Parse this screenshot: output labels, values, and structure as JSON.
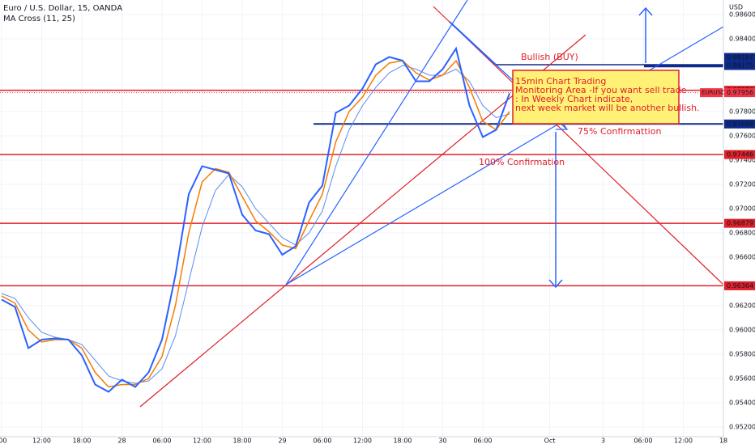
{
  "header": {
    "title": "Euro / U.S. Dollar, 15, OANDA",
    "indicator": "MA Cross (11, 25)",
    "currency": "USD"
  },
  "chart_data": {
    "type": "line",
    "categories": [
      ":00",
      null,
      null,
      "12:00",
      null,
      null,
      "18:00",
      null,
      null,
      "28",
      null,
      null,
      "06:00",
      null,
      null,
      "12:00",
      null,
      null,
      "18:00",
      null,
      null,
      "29",
      null,
      null,
      "06:00",
      null,
      null,
      "12:00",
      null,
      null,
      "18:00",
      null,
      null,
      "30",
      null,
      null,
      "06:00",
      null,
      null,
      null,
      null,
      "Oct",
      null,
      null,
      null,
      "3",
      null,
      null,
      "06:00",
      null,
      null,
      "12:00",
      null,
      null,
      "18"
    ],
    "series": [
      {
        "color": "#2962ff",
        "width": 2,
        "values": [
          0.9625,
          0.9619,
          0.9585,
          0.9592,
          0.9593,
          0.9592,
          0.9579,
          0.9555,
          0.9549,
          0.9559,
          0.9553,
          0.9565,
          0.9592,
          0.9645,
          0.9712,
          0.9735,
          0.9732,
          0.9729,
          0.9695,
          0.9682,
          0.9679,
          0.9662,
          0.9669,
          0.9705,
          0.9719,
          0.9779,
          0.9785,
          0.9799,
          0.9819,
          0.9825,
          0.9822,
          0.9805,
          0.9805,
          0.9815,
          0.9832,
          0.9785,
          0.9759,
          0.9765,
          0.9795,
          null,
          null,
          null,
          null,
          null,
          null,
          null,
          null,
          null,
          null,
          null,
          null,
          null,
          null,
          null,
          null
        ]
      },
      {
        "color": "#f57c00",
        "width": 1.5,
        "values": [
          0.9628,
          0.9622,
          0.96,
          0.959,
          0.9592,
          0.9592,
          0.9585,
          0.9565,
          0.9553,
          0.9555,
          0.9555,
          0.956,
          0.9578,
          0.962,
          0.968,
          0.9722,
          0.9733,
          0.973,
          0.971,
          0.969,
          0.9681,
          0.967,
          0.9667,
          0.969,
          0.9712,
          0.9755,
          0.978,
          0.9792,
          0.981,
          0.982,
          0.9822,
          0.9812,
          0.9806,
          0.981,
          0.9822,
          0.98,
          0.9772,
          0.9765,
          0.978,
          null,
          null,
          null,
          null,
          null,
          null,
          null,
          null,
          null,
          null,
          null,
          null,
          null,
          null,
          null,
          null
        ]
      },
      {
        "color": "#5b8def",
        "width": 1,
        "values": [
          0.963,
          0.9626,
          0.961,
          0.9598,
          0.9594,
          0.9592,
          0.9588,
          0.9575,
          0.9562,
          0.9558,
          0.9556,
          0.9558,
          0.9568,
          0.9595,
          0.964,
          0.9685,
          0.9715,
          0.9728,
          0.9718,
          0.97,
          0.9688,
          0.9676,
          0.967,
          0.968,
          0.9698,
          0.9735,
          0.9765,
          0.9785,
          0.98,
          0.9812,
          0.9818,
          0.9815,
          0.981,
          0.981,
          0.9815,
          0.9805,
          0.9785,
          0.9775,
          0.9778,
          null,
          null,
          null,
          null,
          null,
          null,
          null,
          null,
          null,
          null,
          null,
          null,
          null,
          null,
          null,
          null
        ]
      }
    ],
    "ylim": [
      0.9512,
      0.9872
    ],
    "yticks": [
      {
        "value": 0.986,
        "label": "0.98600"
      },
      {
        "value": 0.984,
        "label": "0.98400"
      },
      {
        "value": 0.978,
        "label": "0.97800"
      },
      {
        "value": 0.976,
        "label": "0.97600"
      },
      {
        "value": 0.974,
        "label": "0.97400"
      },
      {
        "value": 0.972,
        "label": "0.97200"
      },
      {
        "value": 0.97,
        "label": "0.97000"
      },
      {
        "value": 0.968,
        "label": "0.96800"
      },
      {
        "value": 0.966,
        "label": "0.96600"
      },
      {
        "value": 0.962,
        "label": "0.96200"
      },
      {
        "value": 0.96,
        "label": "0.96000"
      },
      {
        "value": 0.958,
        "label": "0.95800"
      },
      {
        "value": 0.956,
        "label": "0.95600"
      },
      {
        "value": 0.954,
        "label": "0.95400"
      },
      {
        "value": 0.952,
        "label": "0.95200"
      }
    ],
    "levels": [
      {
        "value": 0.98187,
        "color": "#0d2a8a"
      },
      {
        "value": 0.98175,
        "color": "#0d2a8a"
      },
      {
        "value": 0.97976,
        "color": "#e0202a"
      },
      {
        "value": 0.97698,
        "color": "#0d2a8a"
      },
      {
        "value": 0.97446,
        "color": "#e0202a"
      },
      {
        "value": 0.96879,
        "color": "#e0202a"
      },
      {
        "value": 0.96364,
        "color": "#e0202a"
      }
    ],
    "current": {
      "symbol": "EURUSD",
      "value": 0.97956,
      "color": "#f23645"
    },
    "annotations": {
      "bullish": "Bullish (BUY)",
      "box_title": "15min Chart Trading",
      "box_line1": "Monitoring Area -If you want sell trade",
      "box_line2": ": In Weekly Chart indicate,",
      "box_line3": " next week market will be another bullish.",
      "confirm75": "75% Confirmattion",
      "confirm100": "100% Confirmation"
    }
  }
}
